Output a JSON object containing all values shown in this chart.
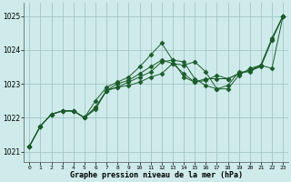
{
  "xlabel": "Graphe pression niveau de la mer (hPa)",
  "background_color": "#ceeaea",
  "grid_color": "#9bbfbf",
  "line_color": "#1a5c2a",
  "ylim": [
    1020.7,
    1025.4
  ],
  "yticks": [
    1021,
    1022,
    1023,
    1024,
    1025
  ],
  "xlim": [
    -0.5,
    23.5
  ],
  "xticks": [
    0,
    1,
    2,
    3,
    4,
    5,
    6,
    7,
    8,
    9,
    10,
    11,
    12,
    13,
    14,
    15,
    16,
    17,
    18,
    19,
    20,
    21,
    22,
    23
  ],
  "series": [
    [
      1021.15,
      1021.75,
      1022.1,
      1022.2,
      1022.2,
      1022.0,
      1022.25,
      1022.8,
      1022.9,
      1022.95,
      1023.05,
      1023.2,
      1023.3,
      1023.6,
      1023.55,
      1023.65,
      1023.35,
      1022.85,
      1022.85,
      1023.25,
      1023.45,
      1023.55,
      1023.45,
      1025.0
    ],
    [
      1021.15,
      1021.75,
      1022.1,
      1022.2,
      1022.2,
      1022.0,
      1022.5,
      1022.9,
      1023.05,
      1023.2,
      1023.5,
      1023.85,
      1024.2,
      1023.7,
      1023.65,
      1023.15,
      1022.95,
      1022.85,
      1022.95,
      1023.35,
      1023.35,
      1023.55,
      1024.35,
      1025.0
    ],
    [
      1021.15,
      1021.75,
      1022.1,
      1022.2,
      1022.2,
      1022.0,
      1022.3,
      1022.8,
      1022.9,
      1023.05,
      1023.2,
      1023.35,
      1023.65,
      1023.7,
      1023.2,
      1023.05,
      1023.15,
      1023.15,
      1023.15,
      1023.3,
      1023.4,
      1023.55,
      1024.3,
      1025.0
    ],
    [
      1021.15,
      1021.75,
      1022.1,
      1022.2,
      1022.2,
      1022.0,
      1022.3,
      1022.8,
      1023.0,
      1023.1,
      1023.3,
      1023.5,
      1023.7,
      1023.6,
      1023.3,
      1023.05,
      1023.1,
      1023.25,
      1023.15,
      1023.3,
      1023.4,
      1023.5,
      1024.3,
      1025.0
    ]
  ]
}
